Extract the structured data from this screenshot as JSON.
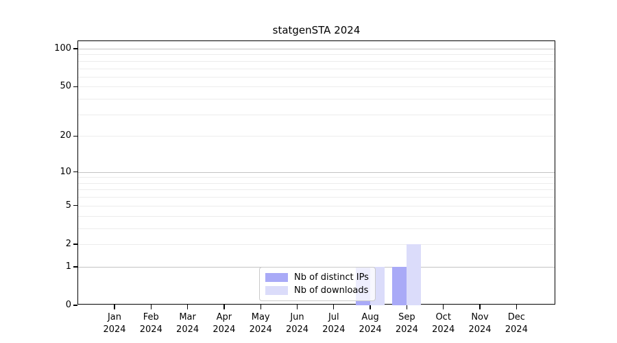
{
  "chart_data": {
    "type": "bar",
    "title": "statgenSTA 2024",
    "scale": "log1p",
    "ylim": [
      0,
      100
    ],
    "y_ticks": [
      0,
      1,
      2,
      5,
      10,
      20,
      50,
      100
    ],
    "major_gridlines": [
      1,
      10,
      100
    ],
    "minor_gridlines": [
      2,
      3,
      4,
      5,
      6,
      7,
      8,
      9,
      20,
      30,
      40,
      50,
      60,
      70,
      80,
      90
    ],
    "grid": true,
    "categories": [
      {
        "month": "Jan",
        "year": "2024"
      },
      {
        "month": "Feb",
        "year": "2024"
      },
      {
        "month": "Mar",
        "year": "2024"
      },
      {
        "month": "Apr",
        "year": "2024"
      },
      {
        "month": "May",
        "year": "2024"
      },
      {
        "month": "Jun",
        "year": "2024"
      },
      {
        "month": "Jul",
        "year": "2024"
      },
      {
        "month": "Aug",
        "year": "2024"
      },
      {
        "month": "Sep",
        "year": "2024"
      },
      {
        "month": "Oct",
        "year": "2024"
      },
      {
        "month": "Nov",
        "year": "2024"
      },
      {
        "month": "Dec",
        "year": "2024"
      }
    ],
    "series": [
      {
        "name": "Nb of distinct IPs",
        "color": "#a9aaf7",
        "values": [
          0,
          0,
          0,
          0,
          0,
          0,
          0,
          1,
          1,
          0,
          0,
          0
        ]
      },
      {
        "name": "Nb of downloads",
        "color": "#dbdcfa",
        "values": [
          0,
          0,
          0,
          0,
          0,
          0,
          0,
          1,
          2,
          0,
          0,
          0
        ]
      }
    ],
    "legend": {
      "position": "inside-bottom-center",
      "entries": [
        "Nb of distinct IPs",
        "Nb of downloads"
      ]
    },
    "colors": {
      "major_grid": "#c3c3c3",
      "minor_grid": "#ececec",
      "spine": "#000000",
      "tick_text": "#000000",
      "legend_border": "#c9c9c9",
      "background": "#ffffff"
    }
  }
}
